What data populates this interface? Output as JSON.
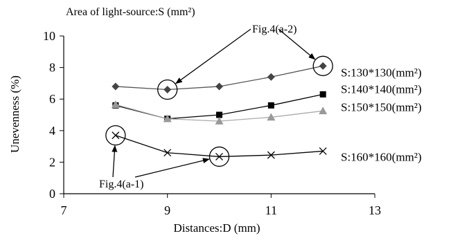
{
  "chart_data": {
    "type": "line",
    "title": "Area of light-source:S (mm²)",
    "xlabel": "Distances:D (mm)",
    "ylabel": "Unevenness (%)",
    "xlim": [
      7,
      13
    ],
    "ylim": [
      0,
      10
    ],
    "x_ticks": [
      7,
      9,
      11,
      13
    ],
    "y_ticks": [
      0,
      2,
      4,
      6,
      8,
      10
    ],
    "grid": false,
    "x": [
      8,
      9,
      10,
      11,
      12
    ],
    "series": [
      {
        "name": "S:130*130(mm²)",
        "marker": "diamond",
        "color": "#555555",
        "marker_color": "#444444",
        "values": [
          6.8,
          6.6,
          6.8,
          7.4,
          8.1
        ]
      },
      {
        "name": "S:140*140(mm²)",
        "marker": "square",
        "color": "#000000",
        "marker_color": "#000000",
        "values": [
          5.6,
          4.75,
          5.0,
          5.6,
          6.3
        ]
      },
      {
        "name": "S:150*150(mm²)",
        "marker": "triangle",
        "color": "#aaaaaa",
        "marker_color": "#999999",
        "values": [
          5.65,
          4.75,
          4.6,
          4.85,
          5.25
        ]
      },
      {
        "name": "S:160*160(mm²)",
        "marker": "x",
        "color": "#000000",
        "marker_color": "#000000",
        "values": [
          3.7,
          2.6,
          2.35,
          2.45,
          2.7
        ]
      }
    ],
    "annotations": [
      {
        "text": "Fig.4(a-2)",
        "targets": [
          [
            9,
            6.6
          ],
          [
            12,
            8.1
          ]
        ]
      },
      {
        "text": "Fig.4(a-1)",
        "targets": [
          [
            8,
            3.7
          ],
          [
            10,
            2.35
          ]
        ]
      }
    ]
  }
}
